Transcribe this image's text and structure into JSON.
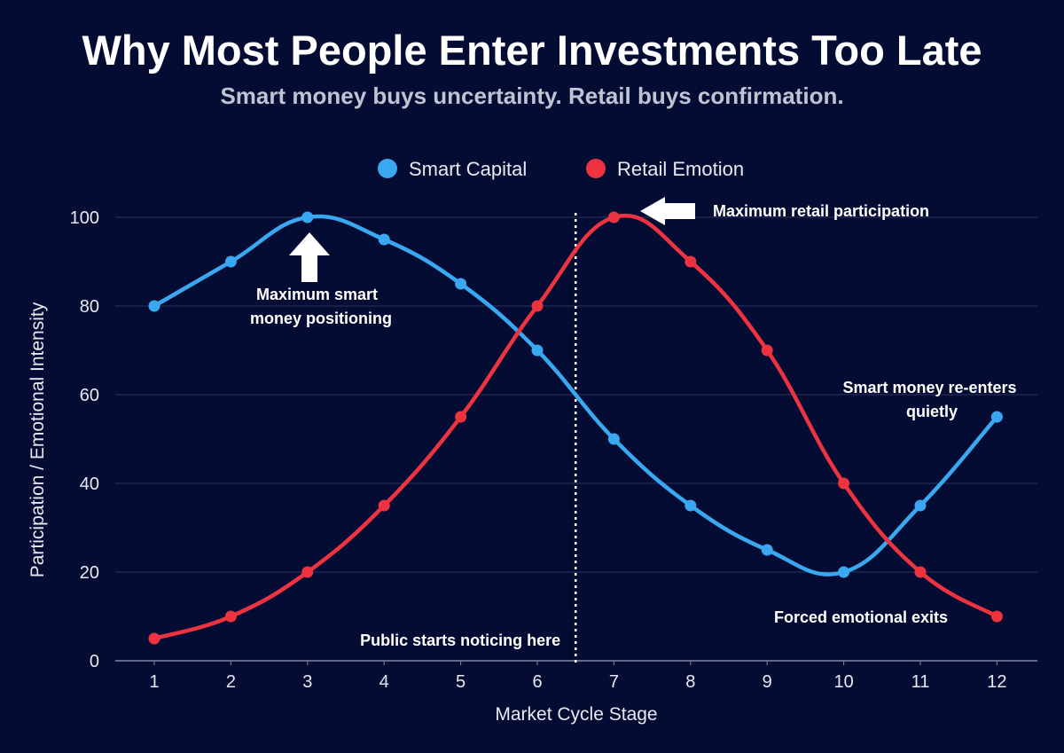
{
  "title": "Why Most People Enter Investments Too Late",
  "subtitle": "Smart money buys uncertainty. Retail buys confirmation.",
  "colors": {
    "background": "#050c33",
    "smart_capital": "#3aa8f0",
    "retail_emotion": "#ee3340",
    "grid": "#2a3360",
    "text": "#e8e9f0"
  },
  "chart_data": {
    "type": "line",
    "title": "Why Most People Enter Investments Too Late",
    "subtitle": "Smart money buys uncertainty. Retail buys confirmation.",
    "xlabel": "Market Cycle Stage",
    "ylabel": "Participation / Emotional Intensity",
    "x": [
      1,
      2,
      3,
      4,
      5,
      6,
      7,
      8,
      9,
      10,
      11,
      12
    ],
    "xticks": [
      "1",
      "2",
      "3",
      "4",
      "5",
      "6",
      "7",
      "8",
      "9",
      "10",
      "11",
      "12"
    ],
    "yticks": [
      "0",
      "20",
      "40",
      "60",
      "80",
      "100"
    ],
    "ylim": [
      0,
      100
    ],
    "grid": "horizontal",
    "legend_position": "top-center",
    "series": [
      {
        "name": "Smart Capital",
        "color": "#3aa8f0",
        "values": [
          80,
          90,
          100,
          95,
          85,
          70,
          50,
          35,
          25,
          20,
          35,
          55
        ]
      },
      {
        "name": "Retail Emotion",
        "color": "#ee3340",
        "values": [
          5,
          10,
          20,
          35,
          55,
          80,
          100,
          90,
          70,
          40,
          20,
          10
        ]
      }
    ],
    "vertical_marker": {
      "x": 6.5,
      "label": "Public starts noticing here"
    },
    "annotations": [
      {
        "id": "smart-peak",
        "lines": [
          "Maximum smart",
          "money positioning"
        ],
        "arrow": "up",
        "points_to_x": 3,
        "points_to_y": 100
      },
      {
        "id": "retail-peak",
        "lines": [
          "Maximum retail participation"
        ],
        "arrow": "left",
        "points_to_x": 7,
        "points_to_y": 100
      },
      {
        "id": "smart-reenter",
        "lines": [
          "Smart money re-enters",
          "quietly"
        ],
        "arrow": "none",
        "points_to_x": 12,
        "points_to_y": 55
      },
      {
        "id": "forced-exits",
        "lines": [
          "Forced emotional exits"
        ],
        "arrow": "none",
        "points_to_x": 12,
        "points_to_y": 10
      }
    ]
  }
}
